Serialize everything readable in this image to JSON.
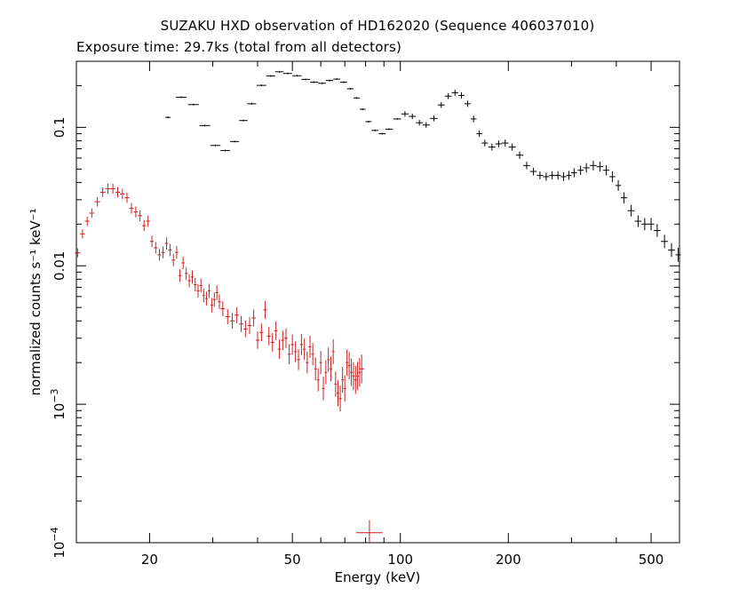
{
  "chart_data": {
    "type": "scatter",
    "title": "SUZAKU HXD observation of HD162020 (Sequence 406037010)",
    "subtitle": "Exposure time: 29.7ks (total from all detectors)",
    "xlabel": "Energy (keV)",
    "ylabel": "normalized counts s⁻¹ keV⁻¹",
    "xscale": "log",
    "yscale": "log",
    "xlim": [
      12.5,
      600
    ],
    "ylim": [
      0.0001,
      0.3
    ],
    "x_ticks": [
      {
        "value": 20,
        "label": "20"
      },
      {
        "value": 50,
        "label": "50"
      },
      {
        "value": 100,
        "label": "100"
      },
      {
        "value": 200,
        "label": "200"
      },
      {
        "value": 500,
        "label": "500"
      }
    ],
    "y_ticks": [
      {
        "value": 0.1,
        "label": "0.1"
      },
      {
        "value": 0.01,
        "label": "0.01"
      },
      {
        "value": 0.001,
        "label": "10",
        "exp": "−3"
      },
      {
        "value": 0.0001,
        "label": "10",
        "exp": "−4"
      }
    ],
    "grid": false,
    "series": [
      {
        "color": "#000000",
        "points": [
          [
            22.5,
            0.118
          ],
          [
            24.5,
            0.165
          ],
          [
            26.5,
            0.146
          ],
          [
            28.5,
            0.103
          ],
          [
            30.5,
            0.074
          ],
          [
            32.5,
            0.068
          ],
          [
            34.5,
            0.079
          ],
          [
            36.5,
            0.112
          ],
          [
            38.5,
            0.148
          ],
          [
            41.0,
            0.201
          ],
          [
            43.5,
            0.235
          ],
          [
            46.0,
            0.252
          ],
          [
            48.5,
            0.245
          ],
          [
            51.5,
            0.236
          ],
          [
            54.5,
            0.222
          ],
          [
            57.5,
            0.212
          ],
          [
            60.5,
            0.208
          ],
          [
            63.5,
            0.218
          ],
          [
            66.5,
            0.223
          ],
          [
            69.5,
            0.212
          ],
          [
            72.5,
            0.19
          ],
          [
            75.5,
            0.163
          ],
          [
            78.5,
            0.135
          ],
          [
            81.5,
            0.11
          ],
          [
            85,
            0.095
          ],
          [
            89,
            0.09
          ],
          [
            93,
            0.097
          ],
          [
            98,
            0.115
          ],
          [
            103,
            0.125
          ],
          [
            108,
            0.12
          ],
          [
            113,
            0.108
          ],
          [
            118,
            0.104
          ],
          [
            124,
            0.116
          ],
          [
            130,
            0.145
          ],
          [
            136,
            0.168
          ],
          [
            142,
            0.178
          ],
          [
            148,
            0.17
          ],
          [
            154,
            0.148
          ],
          [
            160,
            0.115
          ],
          [
            166,
            0.09
          ],
          [
            172,
            0.077
          ],
          [
            180,
            0.072
          ],
          [
            188,
            0.076
          ],
          [
            196,
            0.077
          ],
          [
            205,
            0.072
          ],
          [
            215,
            0.063
          ],
          [
            225,
            0.053
          ],
          [
            235,
            0.048
          ],
          [
            245,
            0.045
          ],
          [
            255,
            0.044
          ],
          [
            265,
            0.045
          ],
          [
            275,
            0.045
          ],
          [
            285,
            0.044
          ],
          [
            295,
            0.045
          ],
          [
            305,
            0.047
          ],
          [
            318,
            0.049
          ],
          [
            330,
            0.051
          ],
          [
            345,
            0.053
          ],
          [
            360,
            0.052
          ],
          [
            375,
            0.049
          ],
          [
            390,
            0.044
          ],
          [
            405,
            0.038
          ],
          [
            420,
            0.031
          ],
          [
            440,
            0.025
          ],
          [
            460,
            0.021
          ],
          [
            480,
            0.02
          ],
          [
            500,
            0.02
          ],
          [
            520,
            0.018
          ],
          [
            545,
            0.015
          ],
          [
            570,
            0.013
          ],
          [
            595,
            0.012
          ]
        ]
      },
      {
        "color": "#cc2020",
        "points": [
          [
            12.6,
            0.0124
          ],
          [
            13.0,
            0.017
          ],
          [
            13.4,
            0.021
          ],
          [
            13.8,
            0.024
          ],
          [
            14.3,
            0.029
          ],
          [
            14.8,
            0.034
          ],
          [
            15.3,
            0.036
          ],
          [
            15.8,
            0.036
          ],
          [
            16.3,
            0.034
          ],
          [
            16.8,
            0.033
          ],
          [
            17.3,
            0.031
          ],
          [
            17.8,
            0.026
          ],
          [
            18.3,
            0.0245
          ],
          [
            18.8,
            0.023
          ],
          [
            19.3,
            0.0195
          ],
          [
            19.8,
            0.021
          ],
          [
            20.3,
            0.015
          ],
          [
            20.8,
            0.0135
          ],
          [
            21.3,
            0.012
          ],
          [
            21.8,
            0.0125
          ],
          [
            22.3,
            0.0145
          ],
          [
            22.8,
            0.013
          ],
          [
            23.3,
            0.011
          ],
          [
            23.8,
            0.0125
          ],
          [
            24.3,
            0.0085
          ],
          [
            24.8,
            0.0105
          ],
          [
            25.3,
            0.0088
          ],
          [
            25.8,
            0.0078
          ],
          [
            26.3,
            0.0083
          ],
          [
            26.8,
            0.0073
          ],
          [
            27.3,
            0.0066
          ],
          [
            27.8,
            0.0072
          ],
          [
            28.3,
            0.0061
          ],
          [
            28.8,
            0.0058
          ],
          [
            29.3,
            0.0066
          ],
          [
            29.8,
            0.0052
          ],
          [
            30.3,
            0.0057
          ],
          [
            30.8,
            0.0064
          ],
          [
            31.3,
            0.0055
          ],
          [
            32,
            0.0049
          ],
          [
            33,
            0.0043
          ],
          [
            34,
            0.004
          ],
          [
            35,
            0.0044
          ],
          [
            36,
            0.0038
          ],
          [
            37,
            0.0035
          ],
          [
            38,
            0.0037
          ],
          [
            39,
            0.0042
          ],
          [
            40,
            0.0029
          ],
          [
            41,
            0.0033
          ],
          [
            42,
            0.0048
          ],
          [
            43,
            0.0031
          ],
          [
            44,
            0.0028
          ],
          [
            45,
            0.0034
          ],
          [
            46,
            0.0025
          ],
          [
            47,
            0.0029
          ],
          [
            48,
            0.003
          ],
          [
            49,
            0.0023
          ],
          [
            50,
            0.0027
          ],
          [
            51,
            0.0024
          ],
          [
            52,
            0.0021
          ],
          [
            53,
            0.0027
          ],
          [
            54,
            0.0025
          ],
          [
            55,
            0.002
          ],
          [
            56,
            0.0026
          ],
          [
            57,
            0.0023
          ],
          [
            58,
            0.0018
          ],
          [
            59,
            0.0015
          ],
          [
            60,
            0.002
          ],
          [
            61,
            0.0013
          ],
          [
            62,
            0.0017
          ],
          [
            63,
            0.0021
          ],
          [
            64,
            0.0018
          ],
          [
            65,
            0.0024
          ],
          [
            66,
            0.0014
          ],
          [
            67,
            0.0012
          ],
          [
            68,
            0.0011
          ],
          [
            69,
            0.0015
          ],
          [
            70,
            0.0013
          ],
          [
            71,
            0.002
          ],
          [
            72,
            0.0019
          ],
          [
            73,
            0.0017
          ],
          [
            74,
            0.0016
          ],
          [
            75,
            0.0015
          ],
          [
            76,
            0.0016
          ],
          [
            77,
            0.0017
          ],
          [
            78,
            0.0018
          ]
        ],
        "outlier": [
          82,
          0.000118
        ]
      }
    ]
  }
}
